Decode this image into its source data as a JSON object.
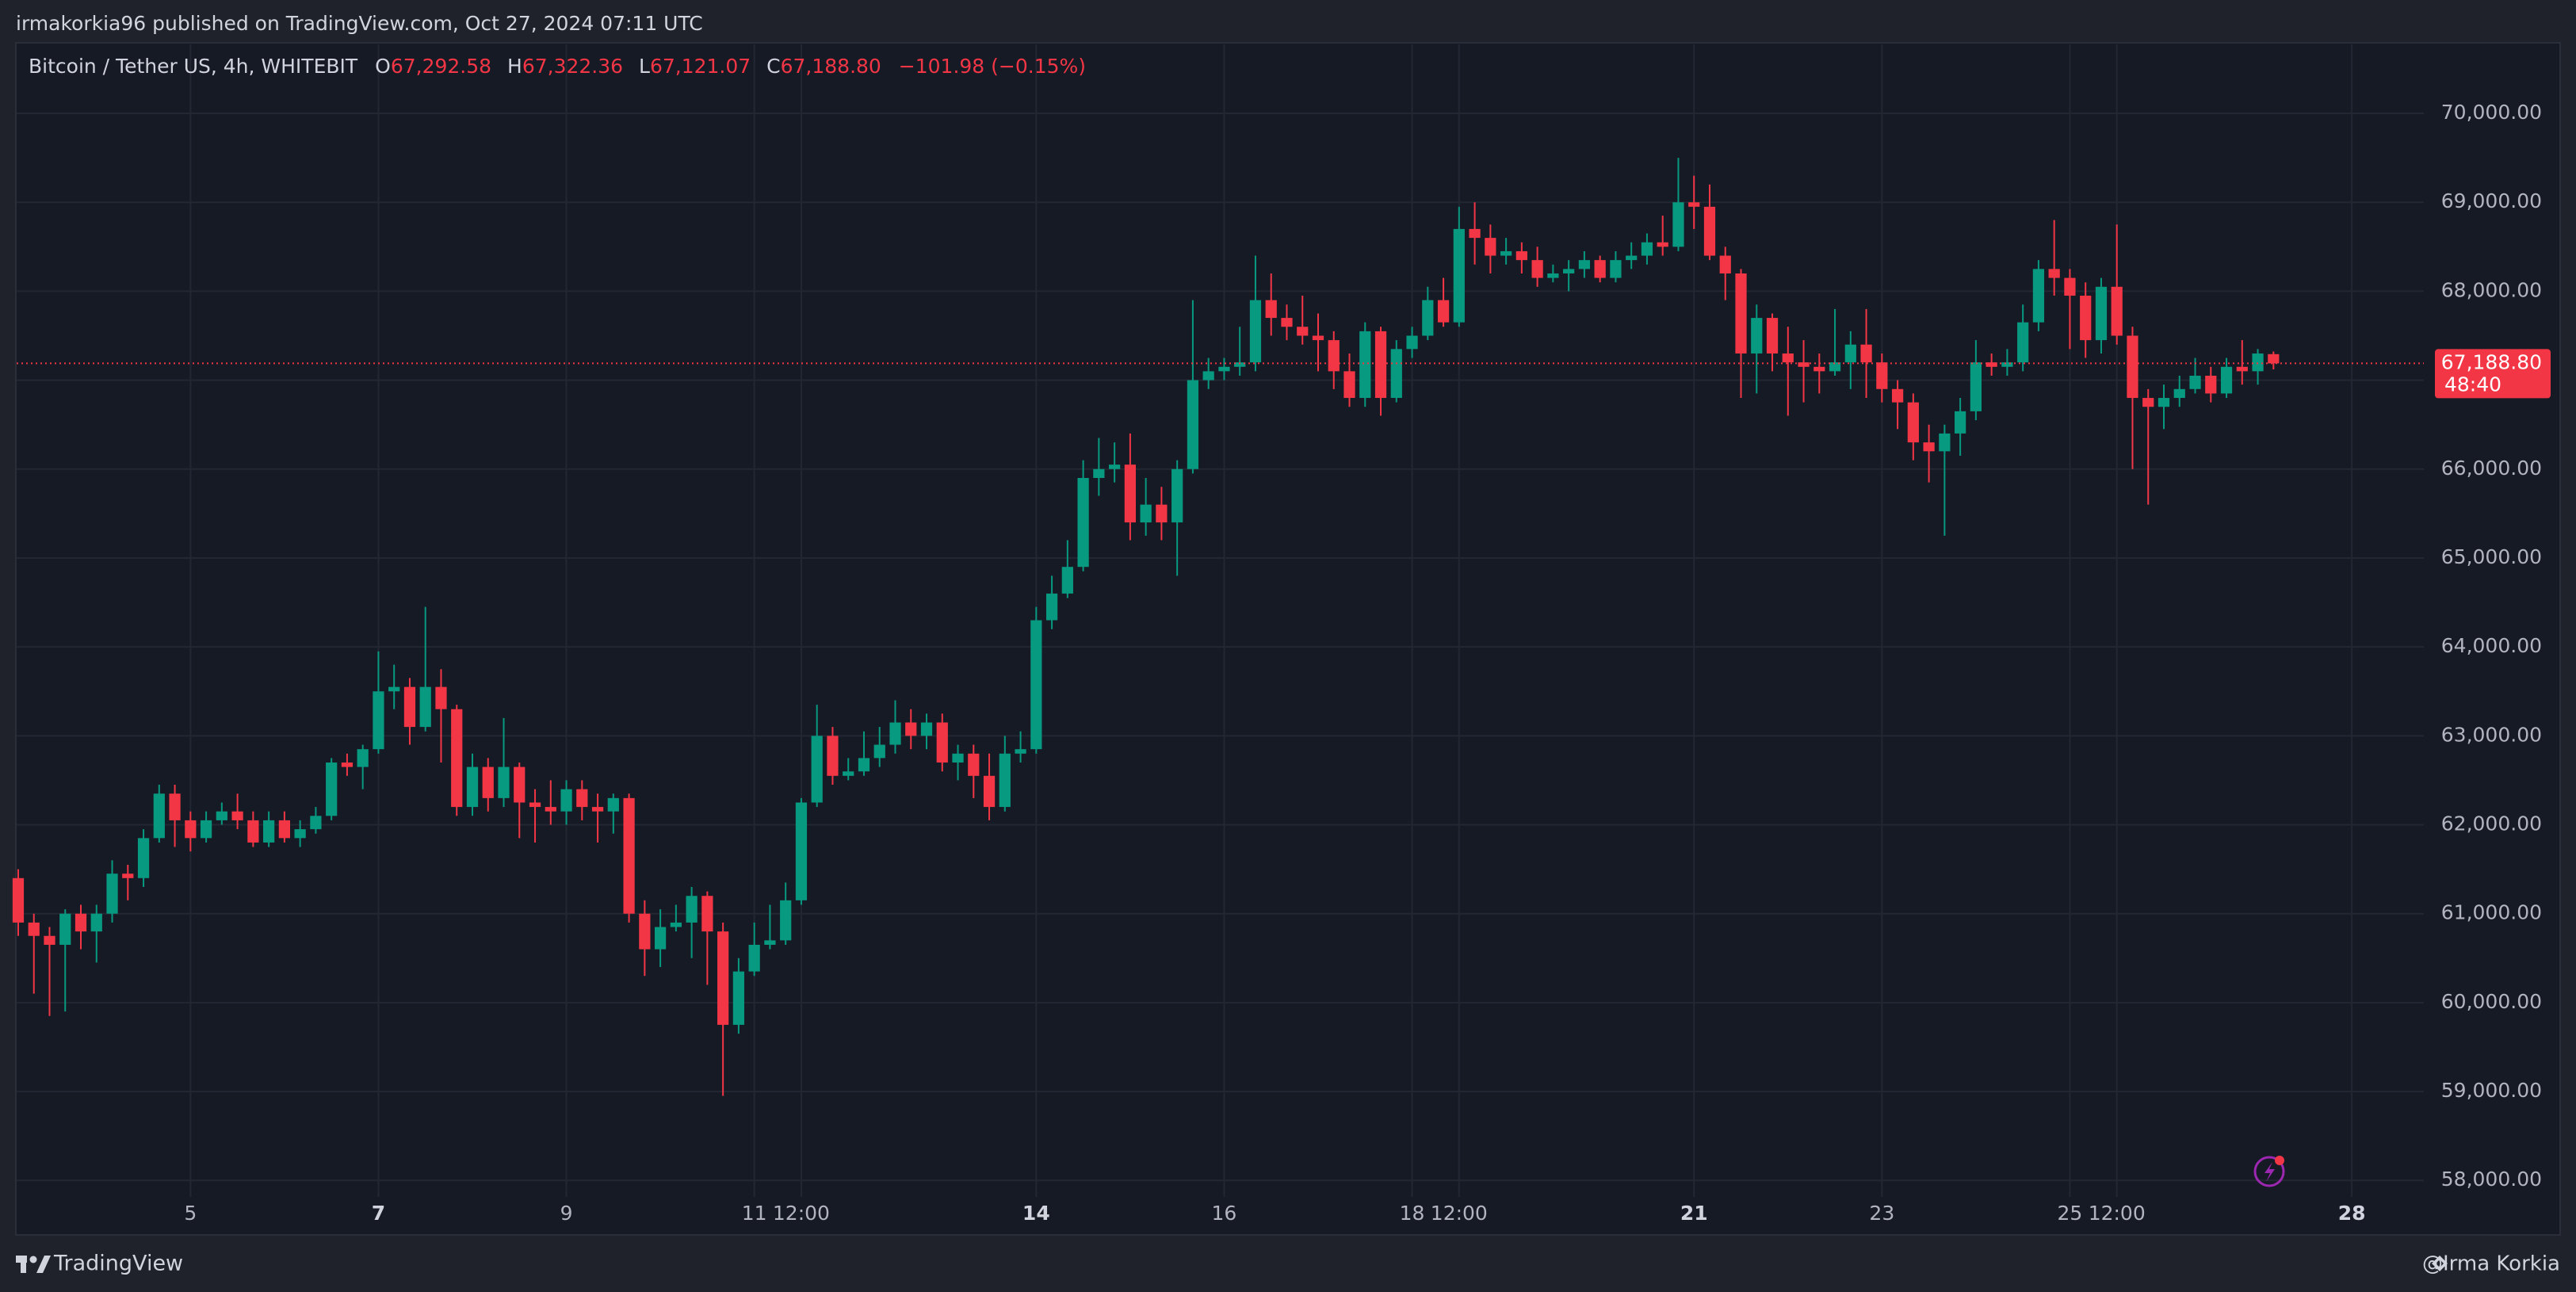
{
  "published": "irmakorkia96 published on TradingView.com, Oct 27, 2024 07:11 UTC",
  "footer": {
    "brand": "TradingView",
    "author": "@Irma Korkia"
  },
  "chart_data": {
    "type": "candlestick",
    "header": {
      "symbol": "Bitcoin / Tether US, 4h, WHITEBIT",
      "ohlc": [
        {
          "key": "O",
          "label": "67,292.58"
        },
        {
          "key": "H",
          "label": "67,322.36"
        },
        {
          "key": "L",
          "label": "67,121.07"
        },
        {
          "key": "C",
          "label": "67,188.80"
        }
      ],
      "change": "−101.98 (−0.15%)"
    },
    "up_color": "#089981",
    "down_color": "#f23645",
    "grid": true,
    "open": [
      61400,
      60900,
      60750,
      60650,
      61000,
      60800,
      61000,
      61450,
      61400,
      61850,
      62350,
      62050,
      61850,
      62050,
      62150,
      62050,
      61800,
      62050,
      61850,
      61950,
      62100,
      62700,
      62650,
      62850,
      63500,
      63550,
      63100,
      63550,
      63300,
      62200,
      62650,
      62300,
      62650,
      62250,
      62200,
      62150,
      62400,
      62200,
      62150,
      62300,
      61000,
      60600,
      60850,
      60900,
      61200,
      60800,
      59750,
      60350,
      60650,
      60700,
      61150,
      62250,
      63000,
      62550,
      62600,
      62750,
      62900,
      63150,
      63000,
      63150,
      62700,
      62800,
      62550,
      62200,
      62800,
      62850,
      64300,
      64600,
      64900,
      65900,
      66000,
      66050,
      65400,
      65600,
      65400,
      66000,
      67000,
      67100,
      67150,
      67200,
      67900,
      67700,
      67600,
      67500,
      67450,
      67100,
      66800,
      67550,
      66800,
      67350,
      67500,
      67900,
      67650,
      68700,
      68600,
      68400,
      68450,
      68350,
      68150,
      68200,
      68250,
      68350,
      68150,
      68350,
      68400,
      68550,
      68500,
      69000,
      68950,
      68400,
      68200,
      67300,
      67700,
      67300,
      67200,
      67150,
      67100,
      67200,
      67400,
      67200,
      66900,
      66750,
      66300,
      66200,
      66400,
      66650,
      67200,
      67150,
      67200,
      67650,
      68250,
      68150,
      67950,
      67450,
      68050,
      67500,
      66800,
      66700,
      66800,
      66900,
      67050,
      66850,
      67150,
      67100,
      67292.58
    ],
    "high": [
      61500,
      61000,
      60850,
      61050,
      61100,
      61100,
      61600,
      61550,
      61950,
      62450,
      62450,
      62150,
      62150,
      62250,
      62350,
      62150,
      62150,
      62150,
      62050,
      62200,
      62750,
      62800,
      62900,
      63950,
      63800,
      63650,
      64450,
      63750,
      63350,
      62800,
      62750,
      63200,
      62700,
      62400,
      62500,
      62500,
      62500,
      62350,
      62350,
      62350,
      61150,
      61050,
      61100,
      61300,
      61250,
      60900,
      60500,
      60900,
      61100,
      61350,
      62300,
      63350,
      63100,
      62750,
      63050,
      63100,
      63400,
      63300,
      63250,
      63250,
      62900,
      62900,
      62800,
      63000,
      63050,
      64450,
      64800,
      65200,
      66100,
      66350,
      66300,
      66400,
      65900,
      65800,
      66100,
      67900,
      67250,
      67250,
      67600,
      68400,
      68200,
      67850,
      67950,
      67750,
      67550,
      67300,
      67650,
      67600,
      67450,
      67600,
      68050,
      68150,
      68950,
      69000,
      68750,
      68600,
      68550,
      68500,
      68300,
      68350,
      68450,
      68400,
      68450,
      68550,
      68650,
      68850,
      69500,
      69300,
      69200,
      68500,
      68250,
      67850,
      67750,
      67600,
      67450,
      67300,
      67800,
      67550,
      67800,
      67300,
      67000,
      66850,
      66500,
      66500,
      66800,
      67450,
      67300,
      67350,
      67850,
      68350,
      68800,
      68250,
      68100,
      68150,
      68750,
      67600,
      66900,
      66950,
      67050,
      67250,
      67150,
      67250,
      67450,
      67350,
      67322.36
    ],
    "low": [
      60750,
      60100,
      59850,
      59900,
      60600,
      60450,
      60900,
      61150,
      61300,
      61800,
      61750,
      61700,
      61800,
      62000,
      61950,
      61750,
      61750,
      61800,
      61750,
      61900,
      62050,
      62550,
      62400,
      62800,
      63300,
      62900,
      63050,
      62700,
      62100,
      62100,
      62150,
      62200,
      61850,
      61800,
      62000,
      62000,
      62050,
      61800,
      61900,
      60900,
      60300,
      60400,
      60800,
      60500,
      60200,
      58950,
      59650,
      60300,
      60600,
      60650,
      61100,
      62200,
      62450,
      62500,
      62550,
      62650,
      62800,
      62850,
      62850,
      62600,
      62500,
      62300,
      62050,
      62150,
      62700,
      62800,
      64200,
      64550,
      64850,
      65700,
      65850,
      65200,
      65250,
      65200,
      64800,
      65950,
      66900,
      67000,
      67050,
      67100,
      67500,
      67450,
      67400,
      67100,
      66900,
      66700,
      66700,
      66600,
      66750,
      67250,
      67450,
      67600,
      67600,
      68300,
      68200,
      68300,
      68200,
      68050,
      68100,
      68000,
      68150,
      68100,
      68100,
      68250,
      68300,
      68400,
      68450,
      68700,
      68350,
      67900,
      66800,
      66850,
      67100,
      66600,
      66750,
      66850,
      67050,
      66900,
      66800,
      66750,
      66450,
      66100,
      65850,
      65250,
      66150,
      66550,
      67050,
      67050,
      67100,
      67550,
      67950,
      67350,
      67250,
      67300,
      67400,
      66000,
      65600,
      66450,
      66700,
      66850,
      66750,
      66800,
      66950,
      66950,
      67121.07
    ],
    "close": [
      60900,
      60750,
      60650,
      61000,
      60800,
      61000,
      61450,
      61400,
      61850,
      62350,
      62050,
      61850,
      62050,
      62150,
      62050,
      61800,
      62050,
      61850,
      61950,
      62100,
      62700,
      62650,
      62850,
      63500,
      63550,
      63100,
      63550,
      63300,
      62200,
      62650,
      62300,
      62650,
      62250,
      62200,
      62150,
      62400,
      62200,
      62150,
      62300,
      61000,
      60600,
      60850,
      60900,
      61200,
      60800,
      59750,
      60350,
      60650,
      60700,
      61150,
      62250,
      63000,
      62550,
      62600,
      62750,
      62900,
      63150,
      63000,
      63150,
      62700,
      62800,
      62550,
      62200,
      62800,
      62850,
      64300,
      64600,
      64900,
      65900,
      66000,
      66050,
      65400,
      65600,
      65400,
      66000,
      67000,
      67100,
      67150,
      67200,
      67900,
      67700,
      67600,
      67500,
      67450,
      67100,
      66800,
      67550,
      66800,
      67350,
      67500,
      67900,
      67650,
      68700,
      68600,
      68400,
      68450,
      68350,
      68150,
      68200,
      68250,
      68350,
      68150,
      68350,
      68400,
      68550,
      68500,
      69000,
      68950,
      68400,
      68200,
      67300,
      67700,
      67300,
      67200,
      67150,
      67100,
      67200,
      67400,
      67200,
      66900,
      66750,
      66300,
      66200,
      66400,
      66650,
      67200,
      67150,
      67200,
      67650,
      68250,
      68150,
      67950,
      67450,
      68050,
      67500,
      66800,
      66700,
      66800,
      66900,
      67050,
      66850,
      67150,
      67100,
      67300,
      67188.8
    ],
    "xlim": [
      -0.1,
      153.6
    ],
    "xticks": [
      {
        "value": 11,
        "label": "5"
      },
      {
        "value": 23,
        "label": "7",
        "bold": true
      },
      {
        "value": 35,
        "label": "9"
      },
      {
        "value": 47,
        "label": "11"
      },
      {
        "value": 50,
        "label": "12:00"
      },
      {
        "value": 65,
        "label": "14",
        "bold": true
      },
      {
        "value": 77,
        "label": "16"
      },
      {
        "value": 89,
        "label": "18"
      },
      {
        "value": 92,
        "label": "12:00"
      },
      {
        "value": 107,
        "label": "21",
        "bold": true
      },
      {
        "value": 119,
        "label": "23"
      },
      {
        "value": 131,
        "label": "25"
      },
      {
        "value": 134,
        "label": "12:00"
      },
      {
        "value": 149,
        "label": "28",
        "bold": true
      }
    ],
    "ylim": [
      57815,
      70776
    ],
    "yticks": [
      {
        "value": 58000,
        "label": "58,000.00"
      },
      {
        "value": 59000,
        "label": "59,000.00"
      },
      {
        "value": 60000,
        "label": "60,000.00"
      },
      {
        "value": 61000,
        "label": "61,000.00"
      },
      {
        "value": 62000,
        "label": "62,000.00"
      },
      {
        "value": 63000,
        "label": "63,000.00"
      },
      {
        "value": 64000,
        "label": "64,000.00"
      },
      {
        "value": 65000,
        "label": "65,000.00"
      },
      {
        "value": 66000,
        "label": "66,000.00"
      },
      {
        "value": 67000,
        "label": "67,000.00"
      },
      {
        "value": 68000,
        "label": "68,000.00"
      },
      {
        "value": 69000,
        "label": "69,000.00"
      },
      {
        "value": 70000,
        "label": "70,000.00"
      }
    ],
    "last_price": {
      "value": 67188.8,
      "label": "67,188.80",
      "countdown": "48:40"
    }
  }
}
